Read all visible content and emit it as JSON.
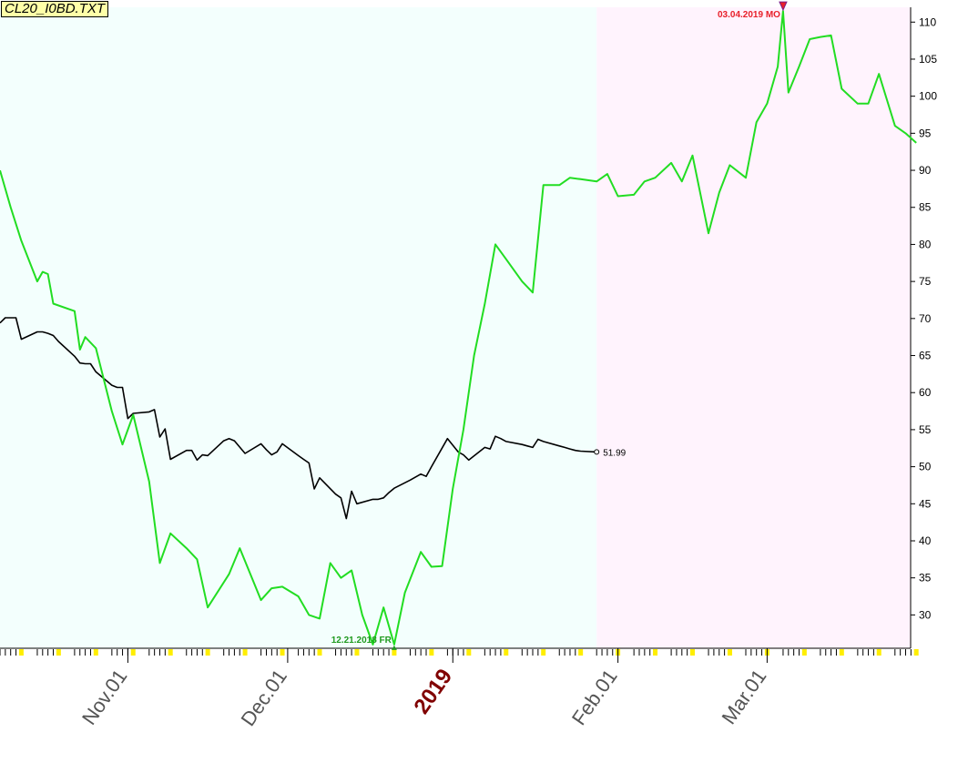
{
  "title": "CL20_I0BD.TXT",
  "colors": {
    "past_background": "#f3fffd",
    "forecast_background": "#fff3fd",
    "actual_line": "#000000",
    "forecast_line": "#22dd22",
    "high_marker": "#e8202a",
    "low_marker": "#1f9a1f",
    "year_label": "#800000",
    "month_label": "#555555"
  },
  "chart_data": {
    "type": "line",
    "title": "CL20_I0BD.TXT",
    "x_axis": {
      "month_labels": [
        {
          "label": "Nov.01",
          "date": "2018-11-01"
        },
        {
          "label": "Dec.01",
          "date": "2018-12-01"
        },
        {
          "label": "2019",
          "date": "2019-01-01",
          "style": "year"
        },
        {
          "label": "Feb.01",
          "date": "2019-02-01"
        },
        {
          "label": "Mar.01",
          "date": "2019-03-01"
        }
      ],
      "range": [
        "2018-10-08",
        "2019-03-29"
      ]
    },
    "y_axis": {
      "side": "right",
      "range": [
        25.5,
        112
      ],
      "ticks": [
        30,
        35,
        40,
        45,
        50,
        55,
        60,
        65,
        70,
        75,
        80,
        85,
        90,
        95,
        100,
        105,
        110
      ]
    },
    "grid": false,
    "forecast_start": "2019-01-28",
    "series": [
      {
        "role": "actual",
        "end_label": "51.99",
        "x": [
          "2018-10-08",
          "2018-10-09",
          "2018-10-10",
          "2018-10-11",
          "2018-10-12",
          "2018-10-15",
          "2018-10-16",
          "2018-10-17",
          "2018-10-18",
          "2018-10-19",
          "2018-10-22",
          "2018-10-23",
          "2018-10-24",
          "2018-10-25",
          "2018-10-26",
          "2018-10-29",
          "2018-10-30",
          "2018-10-31",
          "2018-11-01",
          "2018-11-02",
          "2018-11-05",
          "2018-11-06",
          "2018-11-07",
          "2018-11-08",
          "2018-11-09",
          "2018-11-12",
          "2018-11-13",
          "2018-11-14",
          "2018-11-15",
          "2018-11-16",
          "2018-11-19",
          "2018-11-20",
          "2018-11-21",
          "2018-11-23",
          "2018-11-26",
          "2018-11-27",
          "2018-11-28",
          "2018-11-29",
          "2018-11-30",
          "2018-12-03",
          "2018-12-04",
          "2018-12-05",
          "2018-12-06",
          "2018-12-07",
          "2018-12-10",
          "2018-12-11",
          "2018-12-12",
          "2018-12-13",
          "2018-12-14",
          "2018-12-17",
          "2018-12-18",
          "2018-12-19",
          "2018-12-20",
          "2018-12-21",
          "2018-12-24",
          "2018-12-26",
          "2018-12-27",
          "2018-12-28",
          "2018-12-31",
          "2019-01-02",
          "2019-01-03",
          "2019-01-04",
          "2019-01-07",
          "2019-01-08",
          "2019-01-09",
          "2019-01-10",
          "2019-01-11",
          "2019-01-14",
          "2019-01-15",
          "2019-01-16",
          "2019-01-17",
          "2019-01-18",
          "2019-01-21",
          "2019-01-22",
          "2019-01-23",
          "2019-01-24",
          "2019-01-25",
          "2019-01-28"
        ],
        "y": [
          69.4,
          70.1,
          70.1,
          70.1,
          67.2,
          68.2,
          68.2,
          68.0,
          67.7,
          66.9,
          64.9,
          64.0,
          63.9,
          63.9,
          62.8,
          61.0,
          60.7,
          60.7,
          56.5,
          57.2,
          57.4,
          57.7,
          54.0,
          55.1,
          51.0,
          52.2,
          52.2,
          50.9,
          51.6,
          51.5,
          53.5,
          53.8,
          53.5,
          51.8,
          53.1,
          52.3,
          51.6,
          52.0,
          53.1,
          51.5,
          51.0,
          50.5,
          47.0,
          48.5,
          46.3,
          45.8,
          43.0,
          46.7,
          45.0,
          45.6,
          45.6,
          45.8,
          46.5,
          47.1,
          48.2,
          49.0,
          48.7,
          50.0,
          53.8,
          52.0,
          51.6,
          50.9,
          52.6,
          52.4,
          54.1,
          53.8,
          53.4,
          53.0,
          52.8,
          52.6,
          53.7,
          53.4,
          52.8,
          52.6,
          52.4,
          52.2,
          52.1,
          51.99
        ]
      },
      {
        "role": "forecast",
        "x": [
          "2018-10-08",
          "2018-10-10",
          "2018-10-12",
          "2018-10-15",
          "2018-10-16",
          "2018-10-17",
          "2018-10-18",
          "2018-10-22",
          "2018-10-23",
          "2018-10-24",
          "2018-10-26",
          "2018-10-29",
          "2018-10-31",
          "2018-11-02",
          "2018-11-05",
          "2018-11-07",
          "2018-11-09",
          "2018-11-12",
          "2018-11-14",
          "2018-11-16",
          "2018-11-20",
          "2018-11-22",
          "2018-11-26",
          "2018-11-28",
          "2018-11-30",
          "2018-12-03",
          "2018-12-05",
          "2018-12-07",
          "2018-12-09",
          "2018-12-11",
          "2018-12-13",
          "2018-12-15",
          "2018-12-17",
          "2018-12-19",
          "2018-12-21",
          "2018-12-23",
          "2018-12-26",
          "2018-12-28",
          "2018-12-30",
          "2019-01-01",
          "2019-01-03",
          "2019-01-05",
          "2019-01-07",
          "2019-01-09",
          "2019-01-11",
          "2019-01-14",
          "2019-01-16",
          "2019-01-18",
          "2019-01-21",
          "2019-01-23",
          "2019-01-25",
          "2019-01-28",
          "2019-01-30",
          "2019-02-01",
          "2019-02-04",
          "2019-02-06",
          "2019-02-08",
          "2019-02-11",
          "2019-02-13",
          "2019-02-15",
          "2019-02-18",
          "2019-02-20",
          "2019-02-22",
          "2019-02-25",
          "2019-02-27",
          "2019-03-01",
          "2019-03-03",
          "2019-03-04",
          "2019-03-05",
          "2019-03-07",
          "2019-03-09",
          "2019-03-11",
          "2019-03-13",
          "2019-03-15",
          "2019-03-18",
          "2019-03-20",
          "2019-03-22",
          "2019-03-25",
          "2019-03-27",
          "2019-03-29"
        ],
        "y": [
          90.0,
          85.0,
          80.5,
          75.0,
          76.3,
          76.0,
          72.0,
          71.0,
          65.8,
          67.5,
          66.0,
          57.5,
          53.0,
          57.0,
          48.0,
          37.0,
          41.0,
          39.0,
          37.5,
          31.0,
          35.5,
          39.0,
          32.0,
          33.6,
          33.8,
          32.5,
          30.0,
          29.5,
          37.0,
          35.0,
          36.0,
          30.0,
          26.0,
          31.0,
          26.0,
          33.0,
          38.5,
          36.5,
          36.6,
          47.0,
          55.0,
          65.0,
          72.0,
          80.0,
          78.0,
          75.0,
          73.5,
          88.0,
          88.0,
          89.0,
          88.8,
          88.5,
          89.5,
          86.5,
          86.7,
          88.5,
          89.0,
          91.0,
          88.5,
          92.0,
          81.5,
          87.0,
          90.7,
          89.0,
          96.5,
          99.0,
          104.0,
          111.5,
          100.5,
          104.0,
          107.7,
          108.0,
          108.2,
          101.0,
          99.0,
          99.0,
          103.0,
          96.0,
          95.0,
          93.7
        ]
      }
    ],
    "annotations": [
      {
        "label": "03.04.2019 MO",
        "date": "2019-03-04",
        "value": 111.5,
        "kind": "high"
      },
      {
        "label": "12.21.2018 FR",
        "date": "2018-12-21",
        "value": 26.0,
        "kind": "low"
      }
    ]
  }
}
